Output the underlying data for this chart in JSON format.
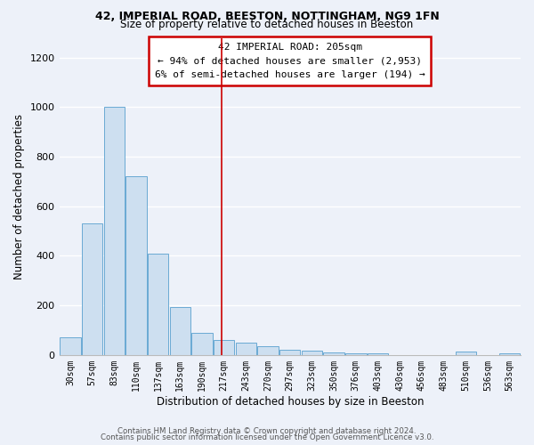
{
  "title1": "42, IMPERIAL ROAD, BEESTON, NOTTINGHAM, NG9 1FN",
  "title2": "Size of property relative to detached houses in Beeston",
  "xlabel": "Distribution of detached houses by size in Beeston",
  "ylabel": "Number of detached properties",
  "bar_color": "#cddff0",
  "bar_edge_color": "#6aaad4",
  "annotation_box_edge": "#cc0000",
  "annotation_line1": "42 IMPERIAL ROAD: 205sqm",
  "annotation_line2": "← 94% of detached houses are smaller (2,953)",
  "annotation_line3": "6% of semi-detached houses are larger (194) →",
  "categories": [
    "30sqm",
    "57sqm",
    "83sqm",
    "110sqm",
    "137sqm",
    "163sqm",
    "190sqm",
    "217sqm",
    "243sqm",
    "270sqm",
    "297sqm",
    "323sqm",
    "350sqm",
    "376sqm",
    "403sqm",
    "430sqm",
    "456sqm",
    "483sqm",
    "510sqm",
    "536sqm",
    "563sqm"
  ],
  "values": [
    70,
    530,
    1000,
    720,
    410,
    195,
    90,
    60,
    50,
    35,
    20,
    18,
    10,
    8,
    5,
    0,
    0,
    0,
    15,
    0,
    5
  ],
  "ylim": [
    0,
    1280
  ],
  "yticks": [
    0,
    200,
    400,
    600,
    800,
    1000,
    1200
  ],
  "footer1": "Contains HM Land Registry data © Crown copyright and database right 2024.",
  "footer2": "Contains public sector information licensed under the Open Government Licence v3.0.",
  "background_color": "#edf1f9",
  "plot_bg_color": "#edf1f9",
  "grid_color": "#ffffff",
  "vertical_line_color": "#cc0000",
  "vertical_line_x": 6.9
}
